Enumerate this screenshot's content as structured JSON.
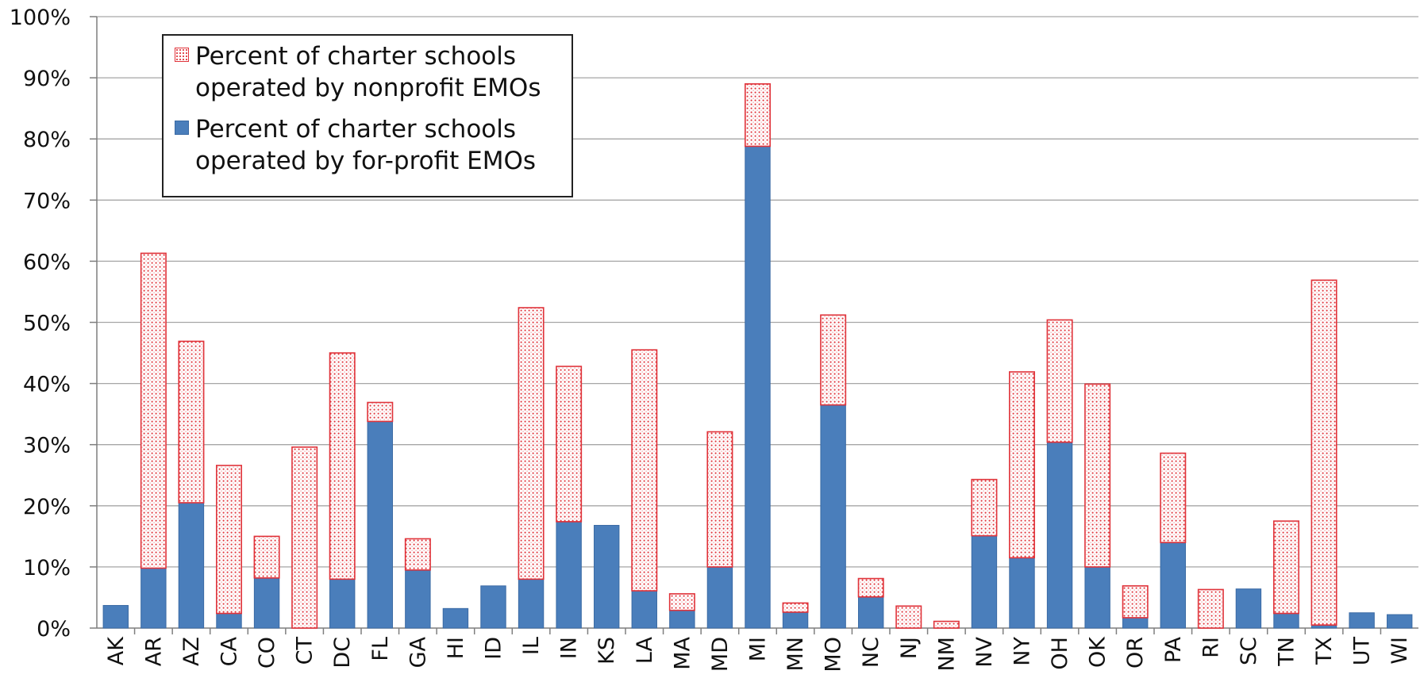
{
  "chart_data": {
    "type": "bar",
    "stacked": true,
    "categories": [
      "AK",
      "AR",
      "AZ",
      "CA",
      "CO",
      "CT",
      "DC",
      "FL",
      "GA",
      "HI",
      "ID",
      "IL",
      "IN",
      "KS",
      "LA",
      "MA",
      "MD",
      "MI",
      "MN",
      "MO",
      "NC",
      "NJ",
      "NM",
      "NV",
      "NY",
      "OH",
      "OK",
      "OR",
      "PA",
      "RI",
      "SC",
      "TN",
      "TX",
      "UT",
      "WI"
    ],
    "series": [
      {
        "name": "Percent of charter schools operated by for-profit EMOs",
        "color": "#4a7ebb",
        "pattern": "solid",
        "values": [
          3.7,
          9.8,
          20.5,
          2.4,
          8.2,
          0,
          8.0,
          33.8,
          9.5,
          3.2,
          6.9,
          8.0,
          17.4,
          16.8,
          6.1,
          2.9,
          10.0,
          78.8,
          2.6,
          36.5,
          5.1,
          0,
          0,
          15.1,
          11.5,
          30.4,
          10.0,
          1.7,
          14.0,
          0,
          6.4,
          2.4,
          0.5,
          2.5,
          2.2
        ]
      },
      {
        "name": "Percent of charter schools operated by nonprofit EMOs",
        "color": "#e0333a",
        "pattern": "dotted",
        "values": [
          0,
          51.5,
          26.4,
          24.2,
          6.8,
          29.6,
          37.0,
          3.1,
          5.1,
          0,
          0,
          44.4,
          25.4,
          0,
          39.4,
          2.7,
          22.1,
          10.2,
          1.5,
          14.7,
          3.0,
          3.6,
          1.1,
          9.2,
          30.4,
          20.0,
          29.9,
          5.2,
          14.6,
          6.3,
          0,
          15.1,
          56.4,
          0,
          0
        ]
      }
    ],
    "legend": {
      "position": "top-left",
      "order": [
        1,
        0
      ],
      "labels": [
        "Percent of charter schools\noperated by nonprofit EMOs",
        "Percent of charter schools\noperated by for-profit EMOs"
      ]
    },
    "ylim": [
      0,
      100
    ],
    "yticks": [
      "0%",
      "10%",
      "20%",
      "30%",
      "40%",
      "50%",
      "60%",
      "70%",
      "80%",
      "90%",
      "100%"
    ],
    "grid": true,
    "title": "",
    "xlabel": "",
    "ylabel": ""
  }
}
